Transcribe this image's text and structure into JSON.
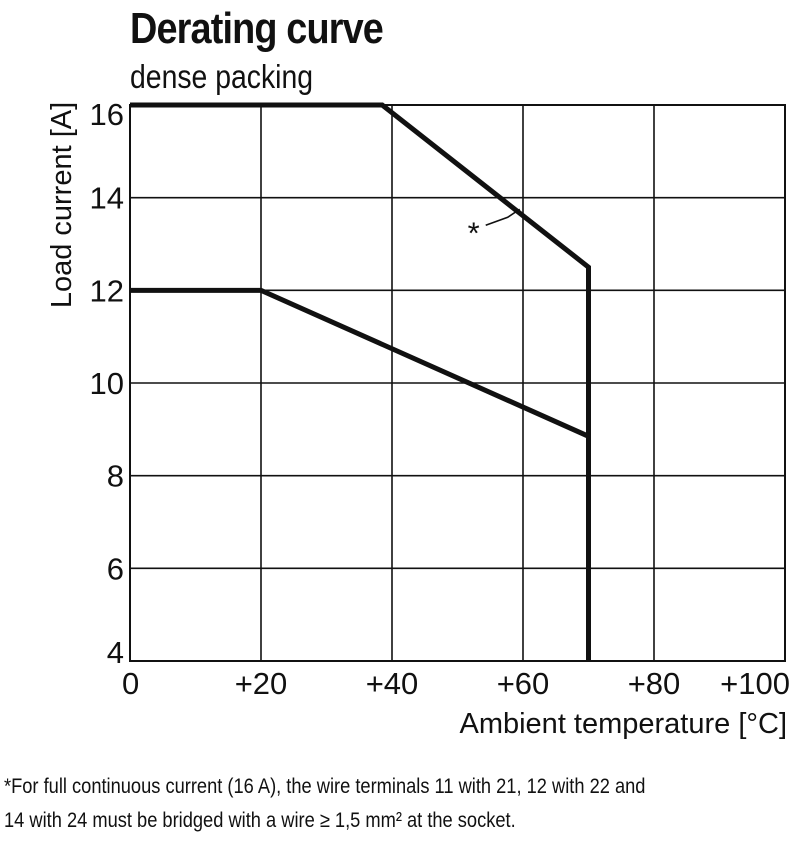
{
  "chart_data": {
    "type": "line",
    "title": "Derating curve",
    "subtitle": "dense packing",
    "xlabel": "Ambient temperature [°C]",
    "ylabel": "Load current [A]",
    "xlim": [
      0,
      100
    ],
    "ylim": [
      4,
      16
    ],
    "xticks": [
      0,
      20,
      40,
      60,
      80,
      100
    ],
    "xtick_labels": [
      "0",
      "+20",
      "+40",
      "+60",
      "+80",
      "+100"
    ],
    "yticks": [
      4,
      6,
      8,
      10,
      12,
      14,
      16
    ],
    "ytick_labels": [
      "4",
      "6",
      "8",
      "10",
      "12",
      "14",
      "16"
    ],
    "grid": true,
    "series": [
      {
        "x": [
          0,
          38.5,
          70,
          70
        ],
        "y": [
          16,
          16,
          12.5,
          4
        ]
      },
      {
        "x": [
          0,
          20,
          70,
          70
        ],
        "y": [
          12,
          12,
          8.85,
          4
        ]
      }
    ],
    "annotations": [
      {
        "text": "*",
        "target_x": 59.5,
        "target_y": 13.75
      }
    ]
  },
  "footnote": {
    "line1": "*For full continuous current (16 A), the wire terminals 11 with 21, 12 with 22 and",
    "line2": "14 with 24 must be bridged with a wire ≥ 1,5 mm² at the socket."
  }
}
